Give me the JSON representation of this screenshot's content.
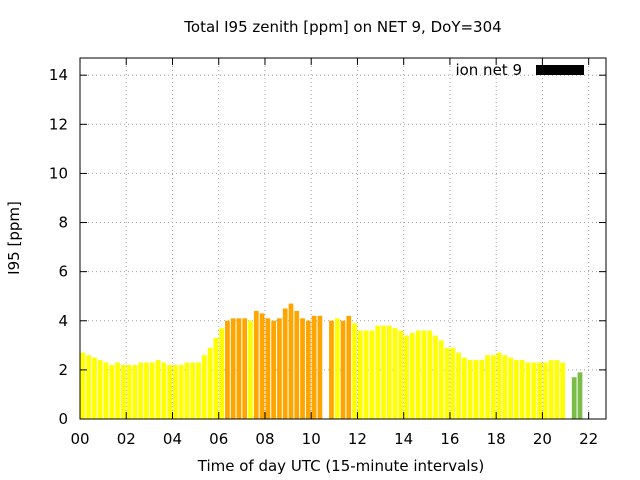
{
  "chart_data": {
    "type": "bar",
    "title": "Total I95 zenith [ppm] on NET 9, DoY=304",
    "xlabel": "Time of day UTC (15-minute intervals)",
    "ylabel": "I95 [ppm]",
    "xlim": [
      0,
      22.75
    ],
    "ylim": [
      0,
      14.7
    ],
    "xticks": [
      "00",
      "02",
      "04",
      "06",
      "08",
      "10",
      "12",
      "14",
      "16",
      "18",
      "20",
      "22"
    ],
    "yticks": [
      "0",
      "2",
      "4",
      "6",
      "8",
      "10",
      "12",
      "14"
    ],
    "grid": true,
    "bar_interval_hours": 0.25,
    "legend": {
      "label": "ion net 9",
      "color": "#000000",
      "position": "top-right"
    },
    "category_colors": {
      "low": "#ffff00",
      "medium": "#ffa500",
      "other": "#7cbd4a"
    },
    "values": [
      2.7,
      2.6,
      2.5,
      2.4,
      2.3,
      2.2,
      2.3,
      2.2,
      2.2,
      2.2,
      2.3,
      2.3,
      2.3,
      2.4,
      2.3,
      2.2,
      2.2,
      2.2,
      2.3,
      2.3,
      2.3,
      2.6,
      2.9,
      3.3,
      3.7,
      4.0,
      4.1,
      4.1,
      4.1,
      4.0,
      4.4,
      4.3,
      4.1,
      4.0,
      4.1,
      4.5,
      4.7,
      4.4,
      4.1,
      4.0,
      4.2,
      4.2,
      0,
      4.0,
      4.1,
      4.0,
      4.2,
      3.9,
      3.6,
      3.6,
      3.6,
      3.8,
      3.8,
      3.8,
      3.7,
      3.6,
      3.4,
      3.5,
      3.6,
      3.6,
      3.6,
      3.4,
      3.2,
      2.9,
      2.9,
      2.7,
      2.5,
      2.4,
      2.4,
      2.4,
      2.6,
      2.6,
      2.7,
      2.6,
      2.5,
      2.4,
      2.4,
      2.3,
      2.3,
      2.3,
      2.3,
      2.4,
      2.4,
      2.3,
      0,
      1.7,
      1.9
    ],
    "categories": [
      "low",
      "low",
      "low",
      "low",
      "low",
      "low",
      "low",
      "low",
      "low",
      "low",
      "low",
      "low",
      "low",
      "low",
      "low",
      "low",
      "low",
      "low",
      "low",
      "low",
      "low",
      "low",
      "low",
      "low",
      "low",
      "medium",
      "medium",
      "medium",
      "medium",
      "low",
      "medium",
      "medium",
      "medium",
      "medium",
      "medium",
      "medium",
      "medium",
      "medium",
      "medium",
      "medium",
      "medium",
      "medium",
      "none",
      "medium",
      "low",
      "medium",
      "medium",
      "low",
      "low",
      "low",
      "low",
      "low",
      "low",
      "low",
      "low",
      "low",
      "low",
      "low",
      "low",
      "low",
      "low",
      "low",
      "low",
      "low",
      "low",
      "low",
      "low",
      "low",
      "low",
      "low",
      "low",
      "low",
      "low",
      "low",
      "low",
      "low",
      "low",
      "low",
      "low",
      "low",
      "low",
      "low",
      "low",
      "low",
      "none",
      "other",
      "other"
    ]
  }
}
